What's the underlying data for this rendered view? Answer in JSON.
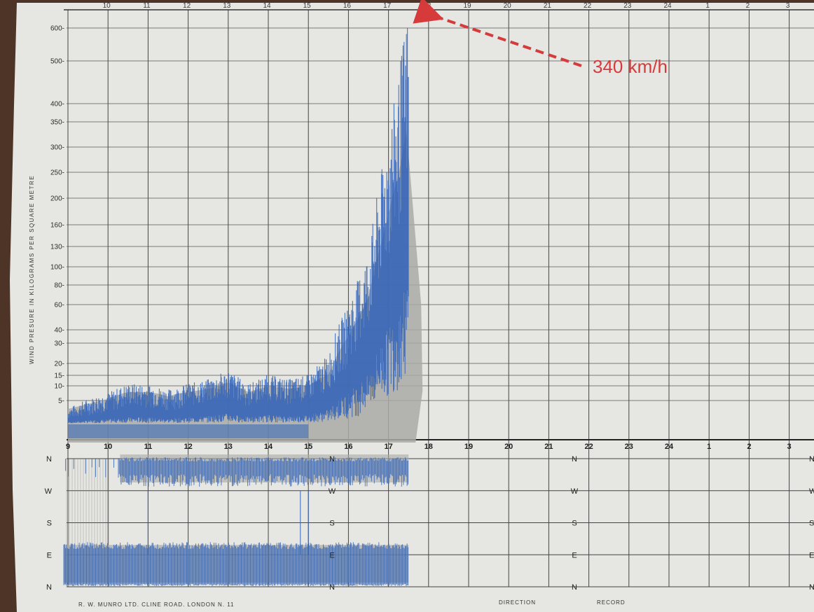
{
  "chart_data": {
    "type": "area",
    "title": "",
    "ylabel": "WIND PRESURE IN KILOGRAMS PER SQUARE METRE",
    "y_ticks": [
      5,
      10,
      15,
      20,
      30,
      40,
      60,
      80,
      100,
      130,
      160,
      200,
      250,
      300,
      350,
      400,
      500,
      600
    ],
    "x_hour_labels": [
      "9",
      "10",
      "11",
      "12",
      "13",
      "14",
      "15",
      "16",
      "17",
      "18",
      "19",
      "20",
      "21",
      "22",
      "23",
      "24",
      "1",
      "2",
      "3"
    ],
    "top_hour_labels": [
      "10",
      "11",
      "12",
      "13",
      "14",
      "15",
      "16",
      "17",
      "18",
      "19",
      "20",
      "21",
      "22",
      "23",
      "24",
      "1",
      "2",
      "3"
    ],
    "series": [
      {
        "hours": [
          9.0,
          9.5,
          10.0,
          10.5,
          11.0,
          11.5,
          12.0,
          12.5,
          13.0,
          13.5,
          14.0,
          14.5,
          15.0,
          15.5,
          15.75,
          16.0,
          16.25,
          16.5,
          16.75,
          17.0,
          17.25,
          17.5
        ],
        "pressure_kg_m2": [
          3,
          5,
          7,
          10,
          10,
          8,
          10,
          12,
          16,
          10,
          14,
          12,
          14,
          22,
          40,
          55,
          80,
          110,
          200,
          300,
          420,
          620
        ]
      }
    ],
    "direction_axis_labels": [
      "N",
      "W",
      "S",
      "E",
      "N"
    ],
    "direction_label_sets": 3,
    "annotation": "340 km/h",
    "footer_left": "R. W. MUNRO LTD. CLINE ROAD. LONDON N. 11",
    "footer_direction": "DIRECTION",
    "footer_record": "RECORD",
    "colors": {
      "paper": "#e6e6e2",
      "grid": "#3c3c3c",
      "ink": "#2f62b8",
      "shadow": "#a9a9a6",
      "annotation": "#d63a3a"
    }
  }
}
